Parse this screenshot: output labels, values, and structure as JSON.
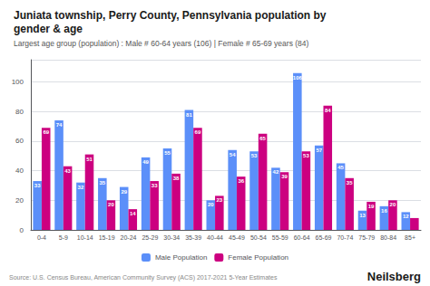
{
  "chart_data": {
    "type": "bar",
    "title": "Juniata township, Perry County, Pennsylvania population by\ngender & age",
    "subtitle": "Largest age group (population) : Male # 60-64 years (106) | Female # 65-69 years (84)",
    "annotations": [
      "Source: U.S. Census Bureau, American Community Survey (ACS) 2017-2021 5-Year Estimates",
      "Neilsberg"
    ],
    "categories": [
      "0-4",
      "5-9",
      "10-14",
      "15-19",
      "20-24",
      "25-29",
      "30-34",
      "35-39",
      "40-44",
      "45-49",
      "50-54",
      "55-59",
      "60-64",
      "65-69",
      "70-74",
      "75-79",
      "80-84",
      "85+"
    ],
    "series": [
      {
        "name": "Male Population",
        "color": "#5b8ff9",
        "values": [
          33,
          74,
          32,
          35,
          29,
          49,
          55,
          81,
          20,
          54,
          53,
          42,
          106,
          57,
          45,
          13,
          16,
          12
        ]
      },
      {
        "name": "Female Population",
        "color": "#cc0080",
        "values": [
          69,
          43,
          51,
          20,
          14,
          33,
          38,
          69,
          23,
          36,
          65,
          39,
          53,
          84,
          35,
          19,
          20,
          8
        ],
        "value_labels": [
          "69",
          "43",
          "51",
          "20",
          "14",
          "33",
          "38",
          "69",
          "23",
          "36",
          "65",
          "39",
          "53",
          "84",
          "35",
          "19",
          "20",
          null
        ]
      }
    ],
    "ylim": [
      0,
      115
    ],
    "yticks": [
      0,
      20,
      40,
      60,
      80,
      100
    ],
    "grid": true,
    "legend": "bottom",
    "data_labels": true
  }
}
